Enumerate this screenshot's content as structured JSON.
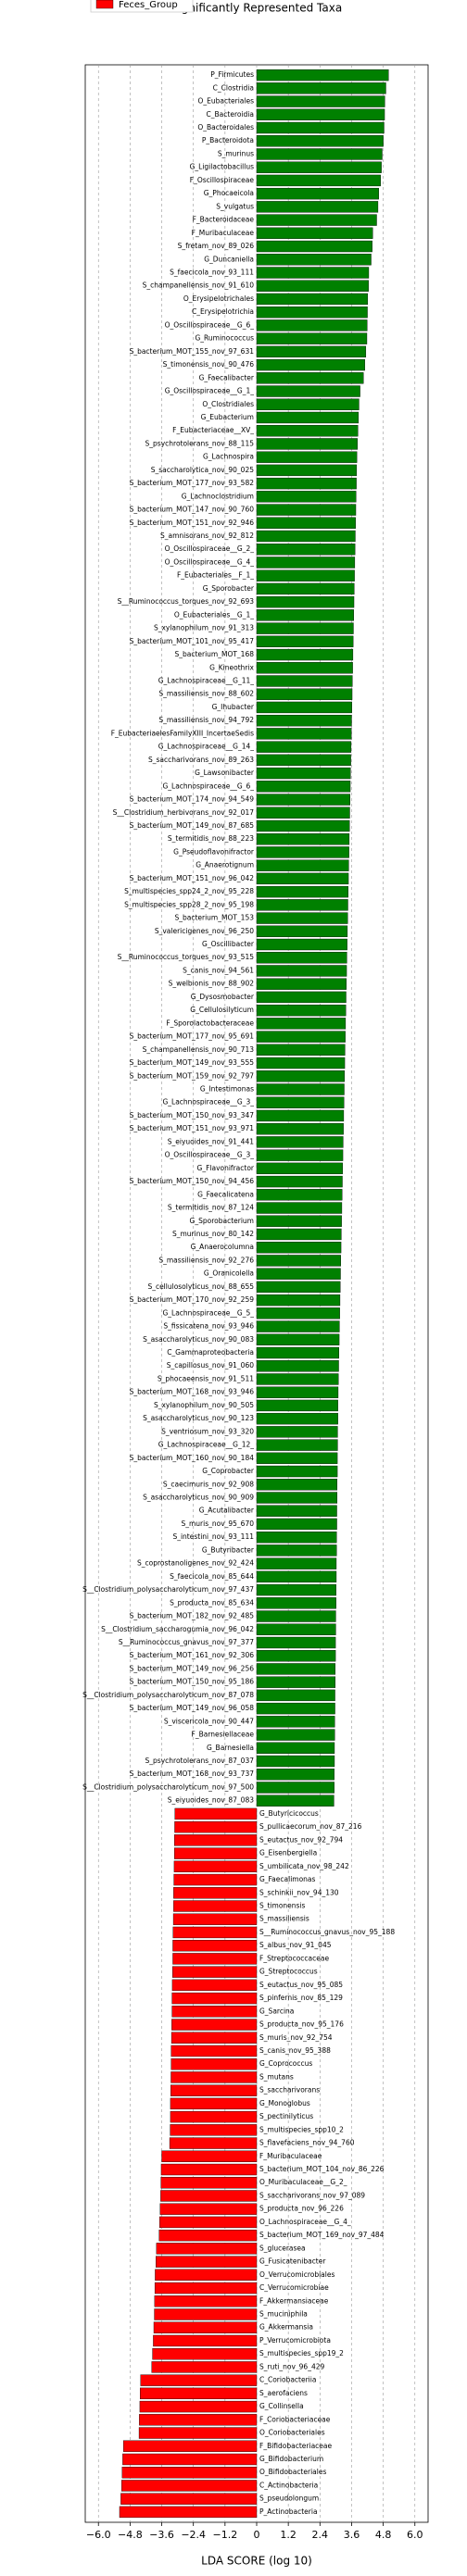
{
  "chart_data": {
    "type": "bar",
    "orientation": "horizontal",
    "title": "Significantly Represented Taxa",
    "xlabel": "LDA SCORE (log 10)",
    "legend": {
      "label": "Feces_Group",
      "color": "#ff0000",
      "loc": "upper left"
    },
    "positive_color": "#008000",
    "negative_color": "#ff0000",
    "grid": true,
    "xlim": [
      -6.5,
      6.5
    ],
    "xticks": [
      {
        "value": -6,
        "label": "−6.0"
      },
      {
        "value": -4.8,
        "label": "−4.8"
      },
      {
        "value": -3.6,
        "label": "−3.6"
      },
      {
        "value": -2.4,
        "label": "−2.4"
      },
      {
        "value": -1.2,
        "label": "−1.2"
      },
      0,
      1.2,
      2.4,
      3.6,
      4.8,
      {
        "value": 6,
        "label": "6.0"
      }
    ],
    "categories": [
      "P_Firmicutes",
      "C_Clostridia",
      "O_Eubacteriales",
      "C_Bacteroidia",
      "O_Bacteroidales",
      "P_Bacteroidota",
      "S_murinus",
      "G_Ligilactobacillus",
      "F_Oscillospiraceae",
      "G_Phocaeicola",
      "S_vulgatus",
      "F_Bacteroidaceae",
      "F_Muribaculaceae",
      "S_fretam_nov_89_026",
      "G_Duncaniella",
      "S_faecicola_nov_93_111",
      "S_champanellensis_nov_91_610",
      "O_Erysipelotrichales",
      "C_Erysipelotrichia",
      "O_Oscillospiraceae__G_6_",
      "G_Ruminococcus",
      "S_bacterium_MOT_155_nov_97_631",
      "S_timonensis_nov_90_476",
      "G_Faecalibacter",
      "G_Oscillospiraceae__G_1_",
      "O_Clostridiales",
      "G_Eubacterium",
      "F_Eubacteriaceae__XV_",
      "S_psychrotolerans_nov_88_115",
      "G_Lachnospira",
      "S_saccharolytica_nov_90_025",
      "S_bacterium_MOT_177_nov_93_582",
      "G_Lachnoclostridium",
      "S_bacterium_MOT_147_nov_90_760",
      "S_bacterium_MOT_151_nov_92_946",
      "S_amnisorans_nov_92_812",
      "O_Oscillospiraceae__G_2_",
      "O_Oscillospiraceae__G_4_",
      "F_Eubacteriales__F_1_",
      "G_Sporobacter",
      "S__Ruminococcus_torques_nov_92_693",
      "O_Eubacteriales__G_1_",
      "S_xylanophilum_nov_91_313",
      "S_bacterium_MOT_101_nov_95_417",
      "S_bacterium_MOT_168",
      "G_Kineothrix",
      "G_Lachnospiraceae__G_11_",
      "S_massiliensis_nov_88_602",
      "G_Ihubacter",
      "S_massiliensis_nov_94_792",
      "F_EubacteriaelesFamilyXIII_IncertaeSedis",
      "G_Lachnospiraceae__G_14_",
      "S_saccharivorans_nov_89_263",
      "G_Lawsonibacter",
      "G_Lachnospiraceae__G_6_",
      "S_bacterium_MOT_174_nov_94_549",
      "S__Clostridium_herbivorans_nov_92_017",
      "S_bacterium_MOT_149_nov_87_685",
      "S_termitidis_nov_88_223",
      "G_Pseudoflavonifractor",
      "G_Anaerotignum",
      "S_bacterium_MOT_151_nov_96_042",
      "S_multispecies_spp24_2_nov_95_228",
      "S_multispecies_spp28_2_nov_95_198",
      "S_bacterium_MOT_153",
      "S_valericigenes_nov_96_250",
      "G_Oscillibacter",
      "S__Ruminococcus_torques_nov_93_515",
      "S_canis_nov_94_561",
      "S_welbionis_nov_88_902",
      "G_Dysosmobacter",
      "G_Cellulosilyticum",
      "F_Sporolactobacteraceae",
      "S_bacterium_MOT_177_nov_95_691",
      "S_champanellensis_nov_90_713",
      "S_bacterium_MOT_149_nov_93_555",
      "S_bacterium_MOT_159_nov_92_797",
      "G_Intestimonas",
      "G_Lachnospiraceae__G_3_",
      "S_bacterium_MOT_150_nov_93_347",
      "S_bacterium_MOT_151_nov_93_971",
      "S_eiyuoides_nov_91_441",
      "O_Oscillospiraceae__G_3_",
      "G_Flavonifractor",
      "S_bacterium_MOT_150_nov_94_456",
      "G_Faecalicatena",
      "S_termitidis_nov_87_124",
      "G_Sporobacterium",
      "S_murinus_nov_80_142",
      "G_Anaerocolumna",
      "S_massiliensis_nov_92_276",
      "G_Oranicolella",
      "S_cellulosolyticus_nov_88_655",
      "S_bacterium_MOT_170_nov_92_259",
      "G_Lachnospiraceae__G_5_",
      "S_fissicatena_nov_93_946",
      "S_asaccharolyticus_nov_90_083",
      "C_Gammaproteobacteria",
      "S_capillosus_nov_91_060",
      "S_phocaeensis_nov_91_511",
      "S_bacterium_MOT_168_nov_93_946",
      "S_xylanophilum_nov_90_505",
      "S_asaccharolyticus_nov_90_123",
      "S_ventriosum_nov_93_320",
      "G_Lachnospiraceae__G_12_",
      "S_bacterium_MOT_160_nov_90_184",
      "G_Coprobacter",
      "S_caecimuris_nov_92_908",
      "S_asaccharolyticus_nov_90_909",
      "G_Acutalibacter",
      "S_muris_nov_95_670",
      "S_intestini_nov_93_111",
      "G_Butyribacter",
      "S_coprostanoligenes_nov_92_424",
      "S_faecicola_nov_85_644",
      "S__Clostridium_polysaccharolyticum_nov_97_437",
      "S_producta_nov_85_634",
      "S_bacterium_MOT_182_nov_92_485",
      "S__Clostridium_saccharogumia_nov_96_042",
      "S__Ruminococcus_gnavus_nov_97_377",
      "S_bacterium_MOT_161_nov_92_306",
      "S_bacterium_MOT_149_nov_96_256",
      "S_bacterium_MOT_150_nov_95_186",
      "S__Clostridium_polysaccharolyticum_nov_87_078",
      "S_bacterium_MOT_149_nov_96_058",
      "S_viscericola_nov_90_447",
      "F_Barnesiellaceae",
      "G_Barnesiella",
      "S_psychrotolerans_nov_87_037",
      "S_bacterium_MOT_168_nov_93_737",
      "S__Clostridium_polysaccharolyticum_nov_97_500",
      "S_eiyuoides_nov_87_083",
      "G_Butyricicoccus",
      "S_pullicaecorum_nov_87_216",
      "S_eutactus_nov_92_794",
      "G_Eisenbergiella",
      "S_umbilicata_nov_98_242",
      "G_Faecalimonas",
      "S_schinkii_nov_94_130",
      "S_timonensis",
      "S_massiliensis",
      "S__Ruminococcus_gnavus_nov_95_188",
      "S_albus_nov_91_045",
      "F_Streptococcaceae",
      "G_Streptococcus",
      "S_eutactus_nov_95_085",
      "S_pinfernis_nov_85_129",
      "G_Sarcina",
      "S_producta_nov_95_176",
      "S_muris_nov_92_754",
      "S_canis_nov_95_388",
      "G_Coprococcus",
      "S_mutans",
      "S_saccharivorans",
      "G_Monoglobus",
      "S_pectinilyticus",
      "S_multispecies_spp10_2",
      "S_flavefaciens_nov_94_760",
      "F_Muribaculaceae",
      "S_bacterium_MOT_104_nov_86_226",
      "O_Muribaculaceae__G_2_",
      "S_saccharivorans_nov_97_089",
      "S_producta_nov_96_226",
      "O_Lachnospiraceae__G_4_",
      "S_bacterium_MOT_169_nov_97_484",
      "S_glucerasea",
      "G_Fusicatenibacter",
      "O_Verrucomicrobiales",
      "C_Verrucomicrobiae",
      "F_Akkermansiaceae",
      "S_muciniphila",
      "G_Akkermansia",
      "P_Verrucomicrobiota",
      "S_multispecies_spp19_2",
      "S_ruti_nov_96_429",
      "C_Coriobacteriia",
      "S_aerofaciens",
      "G_Collinsella",
      "F_Coriobacteriaceae",
      "O_Coriobacteriales",
      "F_Bifidobacteriaceae",
      "G_Bifidobacterium",
      "O_Bifidobacteriales",
      "C_Actinobacteria",
      "S_pseudolongum",
      "P_Actinobacteria"
    ],
    "values": [
      5.0,
      4.9,
      4.86,
      4.85,
      4.83,
      4.8,
      4.76,
      4.73,
      4.7,
      4.63,
      4.6,
      4.55,
      4.4,
      4.38,
      4.34,
      4.25,
      4.24,
      4.21,
      4.2,
      4.19,
      4.18,
      4.14,
      4.1,
      4.05,
      3.92,
      3.88,
      3.86,
      3.84,
      3.82,
      3.8,
      3.79,
      3.78,
      3.77,
      3.76,
      3.75,
      3.74,
      3.73,
      3.72,
      3.71,
      3.7,
      3.69,
      3.68,
      3.67,
      3.66,
      3.65,
      3.64,
      3.63,
      3.62,
      3.61,
      3.6,
      3.59,
      3.58,
      3.57,
      3.56,
      3.55,
      3.54,
      3.53,
      3.52,
      3.51,
      3.5,
      3.49,
      3.48,
      3.47,
      3.46,
      3.45,
      3.44,
      3.43,
      3.42,
      3.41,
      3.4,
      3.39,
      3.38,
      3.37,
      3.36,
      3.35,
      3.34,
      3.33,
      3.32,
      3.31,
      3.3,
      3.29,
      3.28,
      3.27,
      3.26,
      3.25,
      3.24,
      3.23,
      3.22,
      3.21,
      3.2,
      3.19,
      3.18,
      3.17,
      3.16,
      3.15,
      3.14,
      3.13,
      3.12,
      3.11,
      3.1,
      3.09,
      3.08,
      3.08,
      3.07,
      3.07,
      3.06,
      3.06,
      3.05,
      3.05,
      3.04,
      3.04,
      3.03,
      3.03,
      3.02,
      3.02,
      3.01,
      3.01,
      3.0,
      3.0,
      2.99,
      2.99,
      2.98,
      2.98,
      2.97,
      2.97,
      2.96,
      2.96,
      2.95,
      2.95,
      2.94,
      2.94,
      2.93,
      -3.1,
      -3.11,
      -3.12,
      -3.12,
      -3.13,
      -3.14,
      -3.15,
      -3.15,
      -3.16,
      -3.17,
      -3.18,
      -3.18,
      -3.19,
      -3.2,
      -3.21,
      -3.21,
      -3.22,
      -3.23,
      -3.24,
      -3.24,
      -3.25,
      -3.26,
      -3.27,
      -3.27,
      -3.28,
      -3.3,
      -3.6,
      -3.62,
      -3.63,
      -3.64,
      -3.66,
      -3.68,
      -3.7,
      -3.8,
      -3.82,
      -3.85,
      -3.86,
      -3.87,
      -3.88,
      -3.9,
      -3.92,
      -3.95,
      -3.98,
      -4.4,
      -4.42,
      -4.43,
      -4.45,
      -4.46,
      -5.05,
      -5.08,
      -5.1,
      -5.12,
      -5.15,
      -5.2
    ]
  }
}
